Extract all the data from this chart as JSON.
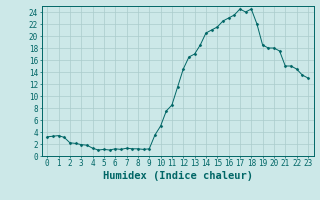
{
  "x_values": [
    0,
    0.5,
    1,
    1.5,
    2,
    2.5,
    3,
    3.5,
    4,
    4.5,
    5,
    5.5,
    6,
    6.5,
    7,
    7.5,
    8,
    8.5,
    9,
    9.5,
    10,
    10.5,
    11,
    11.5,
    12,
    12.5,
    13,
    13.5,
    14,
    14.5,
    15,
    15.5,
    16,
    16.5,
    17,
    17.5,
    18,
    18.5,
    19,
    19.5,
    20,
    20.5,
    21,
    21.5,
    22,
    22.5,
    23
  ],
  "y_values": [
    3.2,
    3.3,
    3.4,
    3.1,
    2.2,
    2.1,
    1.9,
    1.8,
    1.3,
    1.0,
    1.1,
    1.0,
    1.2,
    1.1,
    1.3,
    1.2,
    1.2,
    1.1,
    1.2,
    3.5,
    5.0,
    7.5,
    8.5,
    11.5,
    14.5,
    16.5,
    17.0,
    18.5,
    20.5,
    21.0,
    21.5,
    22.5,
    23.0,
    23.5,
    24.5,
    24.0,
    24.5,
    22.0,
    18.5,
    18.0,
    18.0,
    17.5,
    15.0,
    15.0,
    14.5,
    13.5,
    13.0
  ],
  "line_color": "#006666",
  "marker_color": "#006666",
  "bg_color": "#cce8e8",
  "grid_color": "#aacccc",
  "xlabel": "Humidex (Indice chaleur)",
  "xlim": [
    -0.5,
    23.5
  ],
  "ylim": [
    0,
    25
  ],
  "yticks": [
    0,
    2,
    4,
    6,
    8,
    10,
    12,
    14,
    16,
    18,
    20,
    22,
    24
  ],
  "xticks": [
    0,
    1,
    2,
    3,
    4,
    5,
    6,
    7,
    8,
    9,
    10,
    11,
    12,
    13,
    14,
    15,
    16,
    17,
    18,
    19,
    20,
    21,
    22,
    23
  ],
  "tick_label_fontsize": 5.5,
  "xlabel_fontsize": 7.5
}
